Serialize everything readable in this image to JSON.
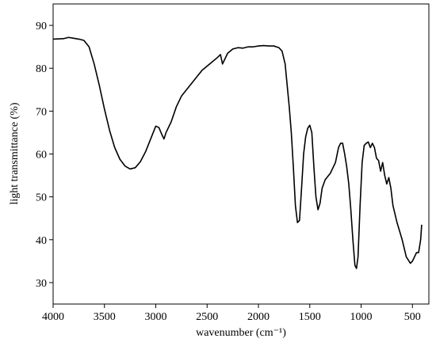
{
  "chart_data": {
    "type": "line",
    "x_label": "wavenumber (cm⁻¹)",
    "y_label": "light transmittance (%)",
    "xlim": [
      4000,
      340
    ],
    "ylim": [
      25,
      95
    ],
    "xticks": [
      4000,
      3500,
      3000,
      2500,
      2000,
      1500,
      1000,
      500
    ],
    "yticks": [
      30,
      40,
      50,
      60,
      70,
      80,
      90
    ],
    "series": [
      {
        "color": "#000000",
        "x": [
          4000,
          3900,
          3850,
          3800,
          3750,
          3700,
          3650,
          3600,
          3550,
          3500,
          3450,
          3400,
          3350,
          3300,
          3250,
          3200,
          3150,
          3100,
          3050,
          3000,
          2970,
          2940,
          2920,
          2900,
          2850,
          2800,
          2750,
          2700,
          2650,
          2600,
          2550,
          2500,
          2450,
          2400,
          2370,
          2350,
          2330,
          2300,
          2250,
          2200,
          2150,
          2100,
          2050,
          2000,
          1950,
          1900,
          1850,
          1800,
          1770,
          1740,
          1720,
          1700,
          1680,
          1660,
          1640,
          1620,
          1600,
          1580,
          1560,
          1540,
          1520,
          1500,
          1480,
          1460,
          1440,
          1420,
          1400,
          1380,
          1350,
          1300,
          1250,
          1220,
          1200,
          1180,
          1160,
          1140,
          1120,
          1100,
          1080,
          1060,
          1045,
          1030,
          1010,
          990,
          970,
          950,
          930,
          910,
          890,
          870,
          850,
          830,
          810,
          790,
          770,
          750,
          730,
          710,
          690,
          650,
          600,
          560,
          520,
          500,
          480,
          460,
          440,
          420,
          410
        ],
        "values": [
          86.8,
          86.9,
          87.2,
          87,
          86.8,
          86.5,
          85,
          81,
          76,
          70.5,
          65.5,
          61.5,
          58.8,
          57.2,
          56.5,
          56.8,
          58.2,
          60.5,
          63.5,
          66.5,
          66.2,
          64.5,
          63.5,
          65,
          67.5,
          71,
          73.5,
          75,
          76.5,
          78,
          79.5,
          80.5,
          81.5,
          82.5,
          83.2,
          81,
          82,
          83.5,
          84.5,
          84.8,
          84.7,
          85,
          85,
          85.2,
          85.3,
          85.2,
          85.2,
          84.8,
          84,
          81,
          76,
          71,
          65,
          57,
          48,
          44,
          44.5,
          52,
          60,
          64,
          66,
          66.7,
          65,
          57,
          50,
          47,
          48.5,
          52,
          54,
          55.5,
          58,
          61.5,
          62.5,
          62.5,
          60,
          57,
          53,
          47,
          40,
          34,
          33.3,
          36,
          48,
          58,
          62,
          62.5,
          62.8,
          61.5,
          62.5,
          61.5,
          59,
          58.5,
          56,
          58,
          55,
          53,
          54.5,
          52,
          48,
          44,
          40,
          36,
          34.5,
          35,
          36,
          37,
          37,
          40,
          43.5
        ]
      }
    ]
  }
}
